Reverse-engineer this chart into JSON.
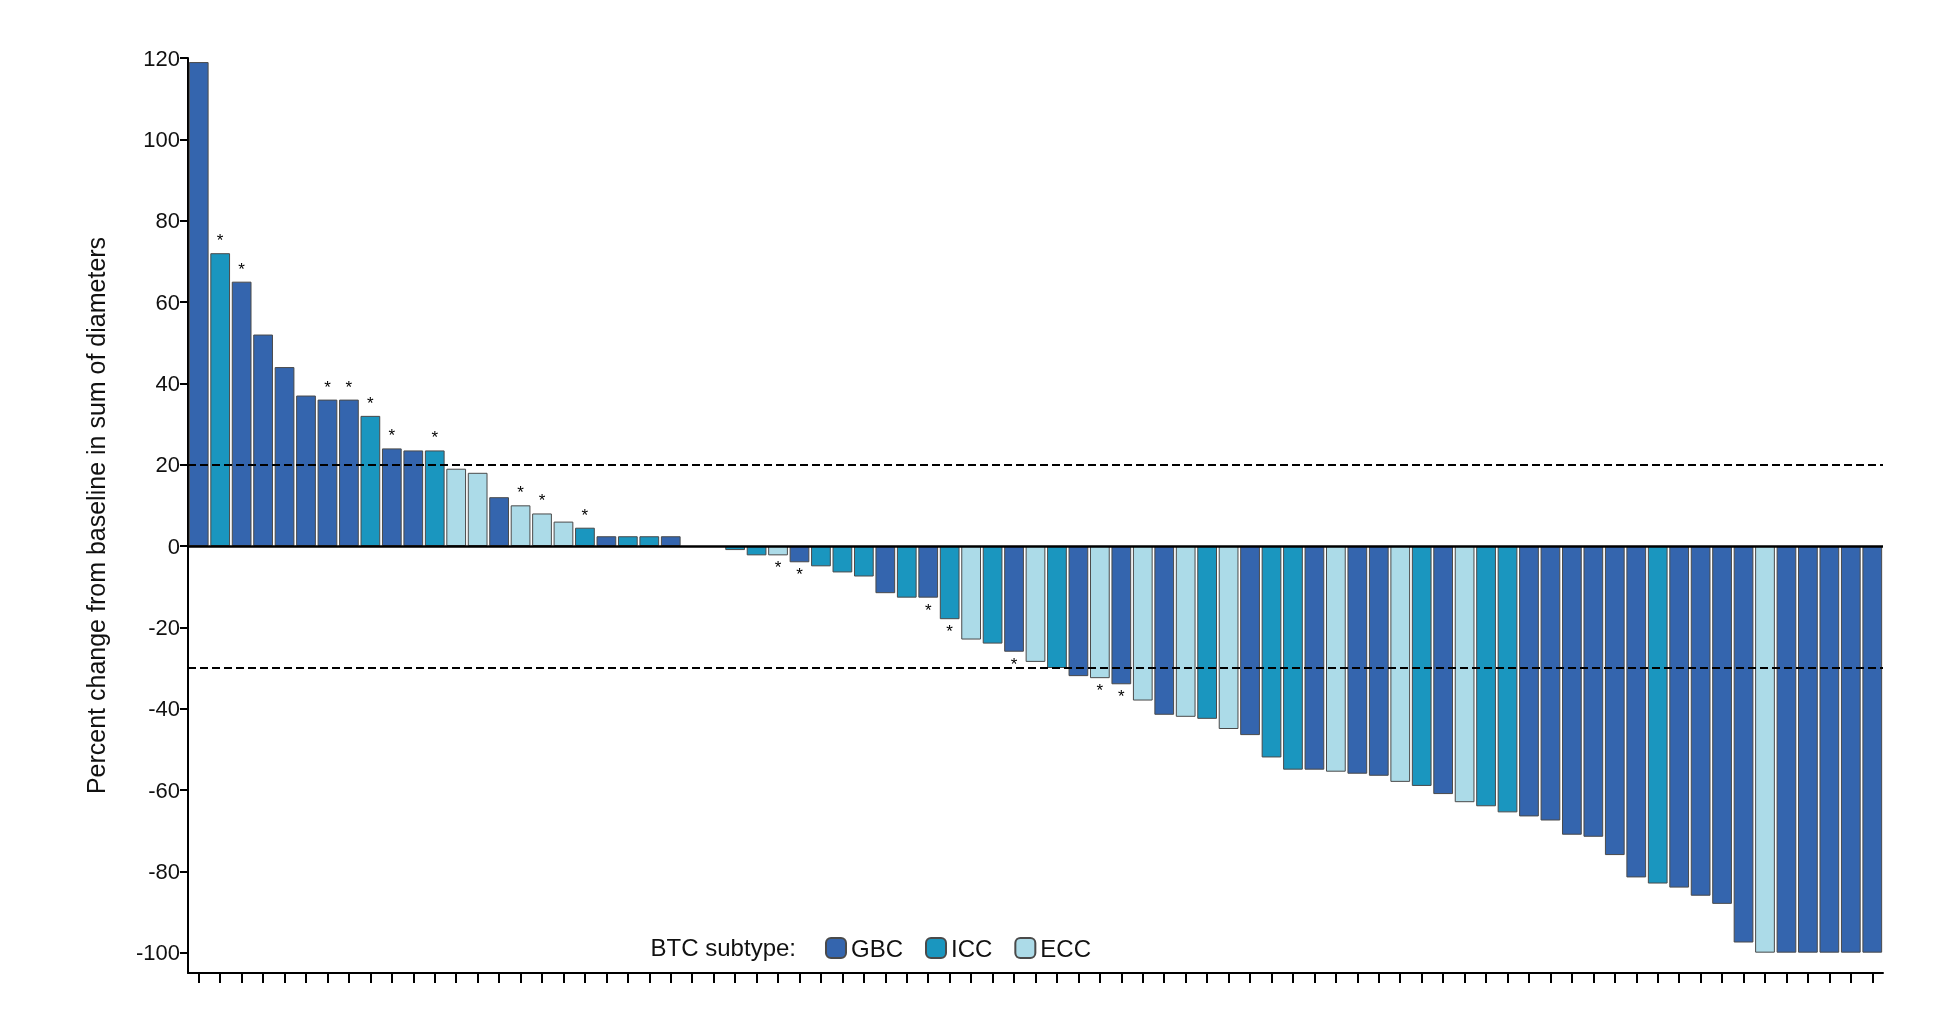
{
  "chart_data": {
    "type": "bar",
    "ylabel": "Percent change from baseline in sum of diameters",
    "legend_title": "BTC subtype:",
    "categories": [
      null,
      null,
      null,
      null,
      null,
      null,
      null,
      null,
      null,
      null,
      null,
      null,
      null,
      null,
      null,
      null,
      null,
      null,
      null,
      null,
      null,
      null,
      null,
      null,
      null,
      null,
      null,
      null,
      null,
      null,
      null,
      null,
      null,
      null,
      null,
      null,
      null,
      null,
      null,
      null,
      null,
      null,
      null,
      null,
      null,
      null,
      null,
      null,
      null,
      null,
      null,
      null,
      null,
      null,
      null,
      null,
      null,
      null,
      null,
      null,
      null,
      null,
      null,
      null,
      null,
      null,
      null,
      null,
      null,
      null,
      null,
      null,
      null,
      null,
      null,
      null,
      null,
      null,
      null
    ],
    "stacked": true,
    "series": [
      {
        "name": "GBC",
        "color": "#3465ae",
        "values": [
          119,
          null,
          65,
          52,
          44,
          37,
          36,
          36,
          null,
          24,
          23.5,
          null,
          null,
          null,
          12,
          null,
          null,
          null,
          null,
          2.4,
          null,
          null,
          2.4,
          null,
          null,
          null,
          null,
          null,
          -4,
          null,
          null,
          null,
          -11.6,
          null,
          -12.7,
          null,
          null,
          null,
          -26,
          null,
          null,
          -32,
          null,
          -34,
          null,
          -41.5,
          null,
          null,
          null,
          -46.5,
          null,
          null,
          -55,
          null,
          -56,
          -56.5,
          null,
          null,
          -61,
          null,
          null,
          null,
          -66.5,
          -67.5,
          -71,
          -71.5,
          -76,
          -81.5,
          null,
          -84,
          -86,
          -88,
          -97.5,
          null,
          -100,
          -100,
          -100,
          -100,
          -100
        ],
        "value_labels": [
          null,
          null,
          "*",
          null,
          null,
          null,
          "*",
          "*",
          null,
          "*",
          null,
          null,
          null,
          null,
          null,
          null,
          null,
          null,
          null,
          null,
          null,
          null,
          null,
          null,
          null,
          null,
          null,
          null,
          "*",
          null,
          null,
          null,
          null,
          null,
          "*",
          null,
          null,
          null,
          "*",
          null,
          null,
          null,
          null,
          "*",
          null,
          null,
          null,
          null,
          null,
          null,
          null,
          null,
          null,
          null,
          null,
          null,
          null,
          null,
          null,
          null,
          null,
          null,
          null,
          null,
          null,
          null,
          null,
          null,
          null,
          null,
          null,
          null,
          null,
          null,
          null,
          null,
          null,
          null,
          null
        ]
      },
      {
        "name": "ICC",
        "color": "#1a96bf",
        "values": [
          null,
          72,
          null,
          null,
          null,
          null,
          null,
          null,
          32,
          null,
          null,
          23.5,
          null,
          null,
          null,
          null,
          null,
          null,
          4.5,
          null,
          2.4,
          2.4,
          null,
          null,
          null,
          -1,
          -2.3,
          null,
          null,
          -5,
          -6.5,
          -7.5,
          null,
          -12.7,
          null,
          -18,
          null,
          -24,
          null,
          null,
          -30,
          null,
          null,
          null,
          null,
          null,
          null,
          -42.5,
          null,
          null,
          -52,
          -55,
          null,
          null,
          null,
          null,
          null,
          -59,
          null,
          null,
          -64,
          -65.5,
          null,
          null,
          null,
          null,
          null,
          null,
          -83,
          null,
          null,
          null,
          null,
          null,
          null,
          null,
          null,
          null,
          null
        ],
        "value_labels": [
          null,
          "*",
          null,
          null,
          null,
          null,
          null,
          null,
          "*",
          null,
          null,
          "*",
          null,
          null,
          null,
          null,
          null,
          null,
          "*",
          null,
          null,
          null,
          null,
          null,
          null,
          null,
          null,
          null,
          null,
          null,
          null,
          null,
          null,
          null,
          null,
          "*",
          null,
          null,
          null,
          null,
          null,
          null,
          null,
          null,
          null,
          null,
          null,
          null,
          null,
          null,
          null,
          null,
          null,
          null,
          null,
          null,
          null,
          null,
          null,
          null,
          null,
          null,
          null,
          null,
          null,
          null,
          null,
          null,
          null,
          null,
          null,
          null,
          null,
          null,
          null,
          null,
          null,
          null,
          null
        ]
      },
      {
        "name": "ECC",
        "color": "#acdbe8",
        "values": [
          null,
          null,
          null,
          null,
          null,
          null,
          null,
          null,
          null,
          null,
          null,
          null,
          19,
          18,
          null,
          10,
          8,
          6,
          null,
          null,
          null,
          null,
          null,
          null,
          null,
          null,
          null,
          -2.3,
          null,
          null,
          null,
          null,
          null,
          null,
          null,
          null,
          -23,
          null,
          null,
          -28.5,
          null,
          null,
          -32.5,
          null,
          -38,
          null,
          -42,
          null,
          -45,
          null,
          null,
          null,
          null,
          -55.5,
          null,
          null,
          -58,
          null,
          null,
          -63,
          null,
          null,
          null,
          null,
          null,
          null,
          null,
          null,
          null,
          null,
          null,
          null,
          null,
          -100,
          null,
          null,
          null,
          null,
          null
        ],
        "value_labels": [
          null,
          null,
          null,
          null,
          null,
          null,
          null,
          null,
          null,
          null,
          null,
          null,
          null,
          null,
          null,
          "*",
          "*",
          null,
          null,
          null,
          null,
          null,
          null,
          null,
          null,
          null,
          null,
          "*",
          null,
          null,
          null,
          null,
          null,
          null,
          null,
          null,
          null,
          null,
          null,
          null,
          null,
          null,
          "*",
          null,
          null,
          null,
          null,
          null,
          null,
          null,
          null,
          null,
          null,
          null,
          null,
          null,
          null,
          null,
          null,
          null,
          null,
          null,
          null,
          null,
          null,
          null,
          null,
          null,
          null,
          null,
          null,
          null,
          null,
          null,
          null,
          null,
          null,
          null,
          null
        ]
      }
    ],
    "ylim": [
      -105,
      120
    ],
    "yticks": [
      -100,
      -80,
      -60,
      -40,
      -20,
      0,
      20,
      40,
      60,
      80,
      100,
      120
    ],
    "ref_lines": [
      {
        "axis": "y",
        "value": 0,
        "line_style": "solid",
        "color": "#000000"
      },
      {
        "axis": "y",
        "value": 20,
        "line_style": "dashed",
        "color": "#000000"
      },
      {
        "axis": "y",
        "value": -30,
        "line_style": "dashed",
        "color": "#000000"
      }
    ],
    "legend": "bottom",
    "grid": false,
    "tick_labels": "y"
  }
}
